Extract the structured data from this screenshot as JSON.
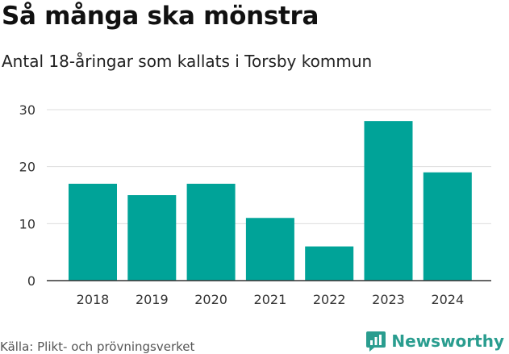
{
  "title": "Så många ska mönstra",
  "subtitle": "Antal 18-åringar som kallats i Torsby kommun",
  "source": "Källa: Plikt- och prövningsverket",
  "brand": {
    "name": "Newsworthy",
    "icon": "newsworthy-logo-icon",
    "color": "#2a9d8f"
  },
  "colors": {
    "bar": "#00a398",
    "grid": "#dddddd",
    "axis": "#333333"
  },
  "chart_data": {
    "type": "bar",
    "categories": [
      "2018",
      "2019",
      "2020",
      "2021",
      "2022",
      "2023",
      "2024"
    ],
    "values": [
      17,
      15,
      17,
      11,
      6,
      28,
      19
    ],
    "title": "Så många ska mönstra",
    "subtitle": "Antal 18-åringar som kallats i Torsby kommun",
    "xlabel": "",
    "ylabel": "",
    "ylim": [
      0,
      30
    ],
    "yticks": [
      0,
      10,
      20,
      30
    ],
    "grid": true,
    "legend": "none"
  }
}
